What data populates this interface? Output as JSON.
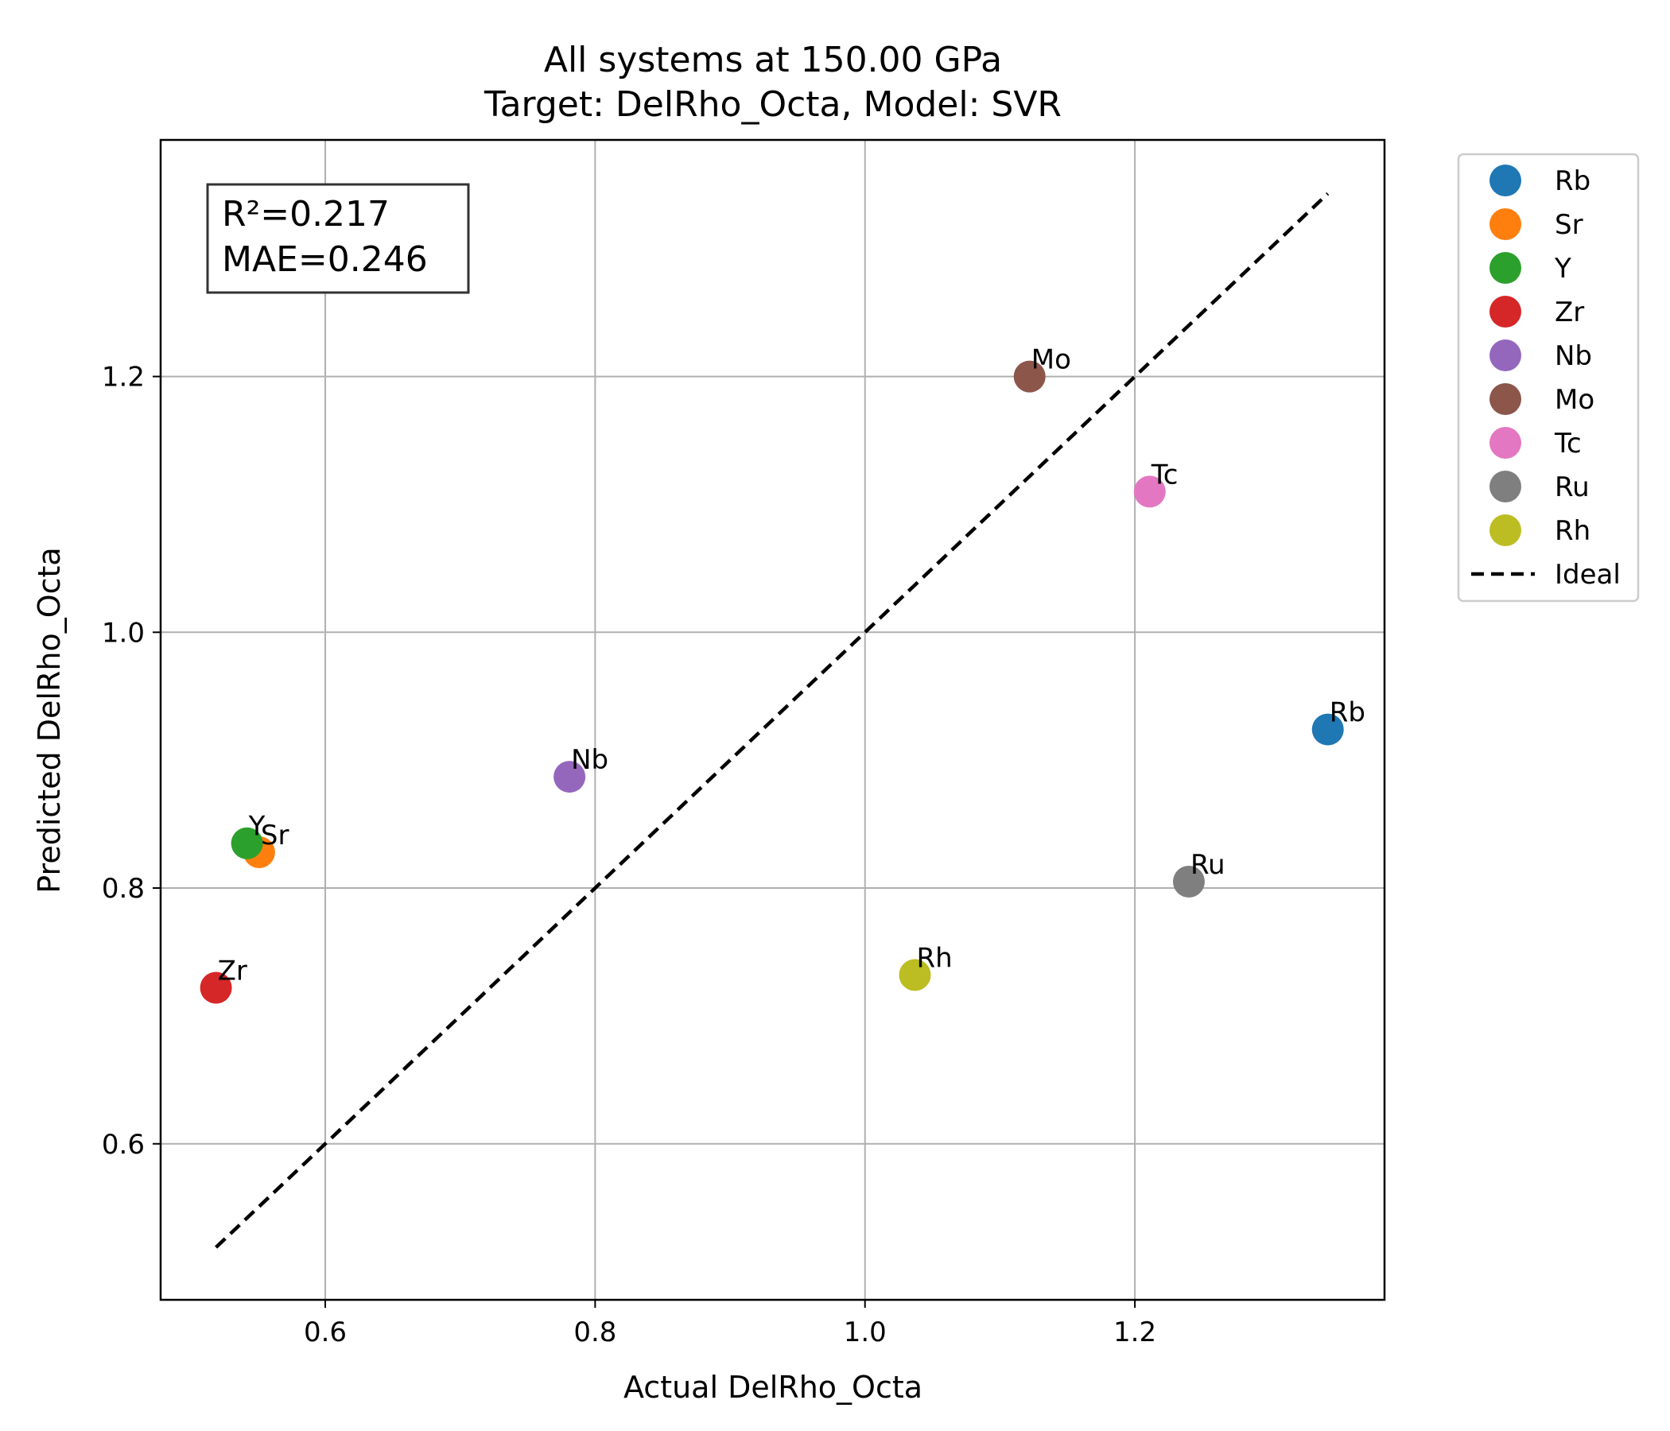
{
  "chart_data": {
    "type": "scatter",
    "title": "All systems at 150.00 GPa",
    "subtitle": "Target: DelRho_Octa, Model: SVR",
    "xlabel": "Actual DelRho_Octa",
    "ylabel": "Predicted DelRho_Octa",
    "xlim": [
      0.478,
      1.385
    ],
    "ylim": [
      0.478,
      1.385
    ],
    "xticks": [
      0.6,
      0.8,
      1.0,
      1.2
    ],
    "yticks": [
      0.6,
      0.8,
      1.0,
      1.2
    ],
    "xtick_labels": [
      "0.6",
      "0.8",
      "1.0",
      "1.2"
    ],
    "ytick_labels": [
      "0.6",
      "0.8",
      "1.0",
      "1.2"
    ],
    "grid": true,
    "legend_position": "outside-right",
    "stats": {
      "r2": "R²=0.217",
      "mae": "MAE=0.246"
    },
    "series": [
      {
        "name": "Rb",
        "color": "#1f77b4",
        "x": 1.343,
        "y": 0.924,
        "label": "Rb"
      },
      {
        "name": "Sr",
        "color": "#ff7f0e",
        "x": 0.551,
        "y": 0.828,
        "label": "Sr"
      },
      {
        "name": "Y",
        "color": "#2ca02c",
        "x": 0.542,
        "y": 0.835,
        "label": "Y"
      },
      {
        "name": "Zr",
        "color": "#d62728",
        "x": 0.519,
        "y": 0.722,
        "label": "Zr"
      },
      {
        "name": "Nb",
        "color": "#9467bd",
        "x": 0.781,
        "y": 0.887,
        "label": "Nb"
      },
      {
        "name": "Mo",
        "color": "#8c564b",
        "x": 1.122,
        "y": 1.2,
        "label": "Mo"
      },
      {
        "name": "Tc",
        "color": "#e377c2",
        "x": 1.211,
        "y": 1.11,
        "label": "Tc"
      },
      {
        "name": "Ru",
        "color": "#7f7f7f",
        "x": 1.24,
        "y": 0.805,
        "label": "Ru"
      },
      {
        "name": "Rh",
        "color": "#bcbd22",
        "x": 1.037,
        "y": 0.732,
        "label": "Rh"
      }
    ],
    "ideal_line": {
      "name": "Ideal",
      "color": "#000000",
      "x": [
        0.519,
        1.343
      ],
      "y": [
        0.519,
        1.343
      ]
    }
  }
}
